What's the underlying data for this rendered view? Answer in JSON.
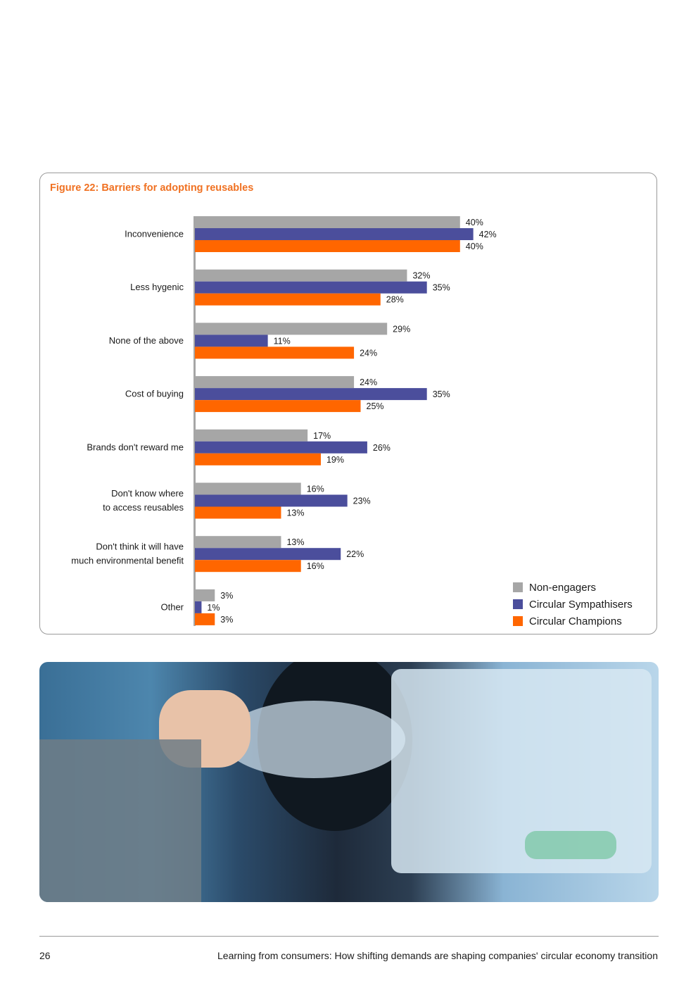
{
  "chart_data": {
    "type": "bar",
    "orientation": "horizontal",
    "title": "Figure 22: Barriers for adopting reusables",
    "categories": [
      [
        "Inconvenience"
      ],
      [
        "Less hygenic"
      ],
      [
        "None of the above"
      ],
      [
        "Cost of buying"
      ],
      [
        "Brands don't reward me"
      ],
      [
        "Don't know where",
        "to access reusables"
      ],
      [
        "Don't think it will have",
        "much environmental benefit"
      ],
      [
        "Other"
      ]
    ],
    "series": [
      {
        "name": "Non-engagers",
        "color": "#a6a6a6",
        "values": [
          40,
          32,
          29,
          24,
          17,
          16,
          13,
          3
        ]
      },
      {
        "name": "Circular Sympathisers",
        "color": "#4b4e9c",
        "values": [
          42,
          35,
          11,
          35,
          26,
          23,
          22,
          1
        ]
      },
      {
        "name": "Circular Champions",
        "color": "#ff6600",
        "values": [
          40,
          28,
          24,
          25,
          19,
          13,
          16,
          3
        ]
      }
    ],
    "value_suffix": "%",
    "xlim": [
      0,
      100
    ],
    "legend_position": "bottom-right",
    "grid": false
  },
  "photo": {
    "description_icon": "recycling-machine-photo"
  },
  "footer": {
    "page_number": "26",
    "text": "Learning from consumers: How shifting demands are shaping companies' circular economy transition"
  }
}
